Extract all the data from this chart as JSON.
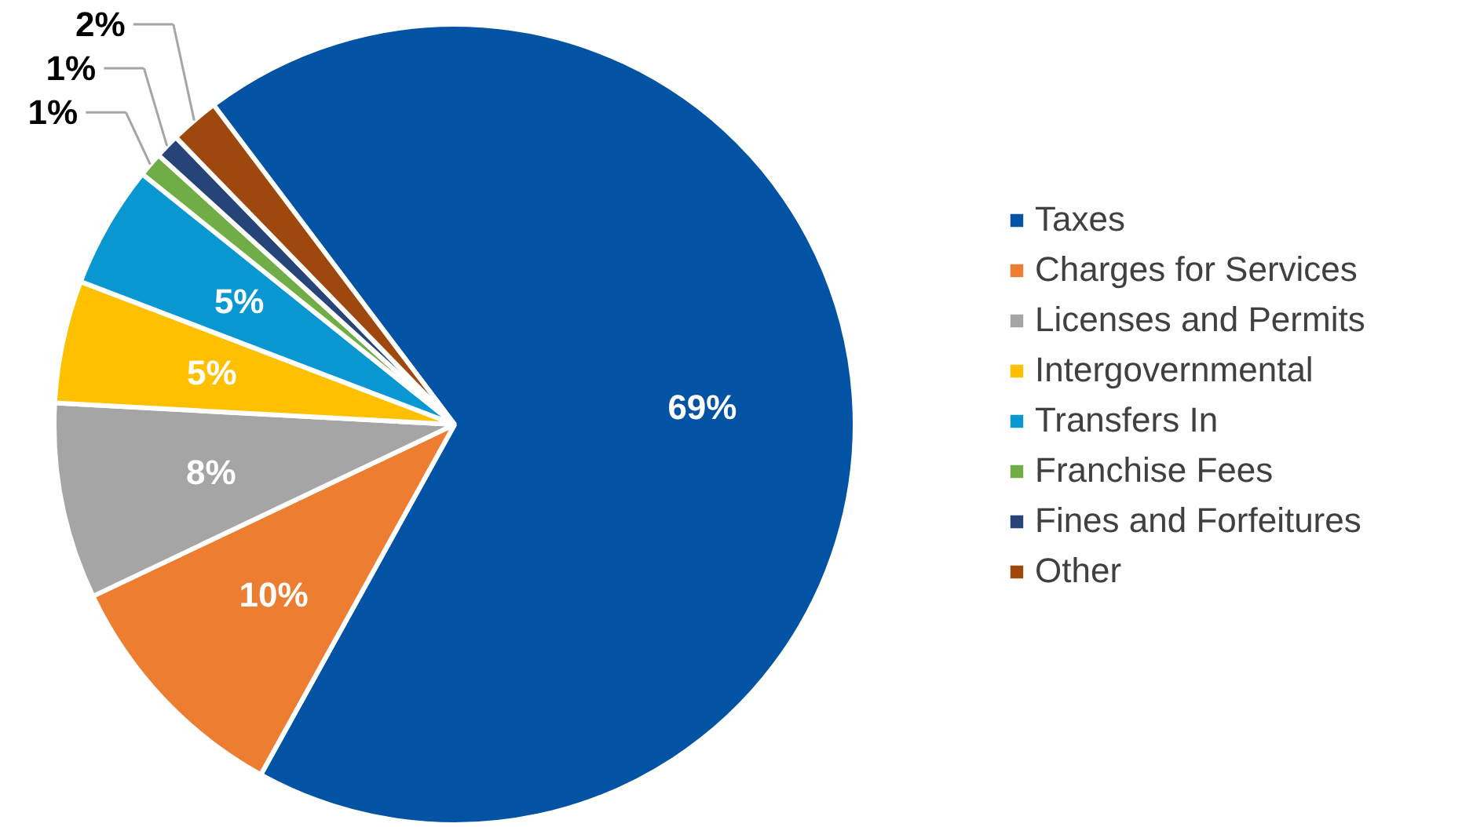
{
  "chart_data": {
    "type": "pie",
    "categories": [
      "Taxes",
      "Charges for Services",
      "Licenses and Permits",
      "Intergovernmental",
      "Transfers In",
      "Franchise Fees",
      "Fines and Forfeitures",
      "Other"
    ],
    "values": [
      69,
      10,
      8,
      5,
      5,
      1,
      1,
      2
    ],
    "colors": [
      "#0353a4",
      "#ed7d31",
      "#a5a5a5",
      "#ffc000",
      "#0897d0",
      "#70ad47",
      "#264478",
      "#9e480e"
    ],
    "value_labels": [
      "69%",
      "10%",
      "8%",
      "5%",
      "5%",
      "1%",
      "1%",
      "2%"
    ],
    "legend": "right"
  }
}
